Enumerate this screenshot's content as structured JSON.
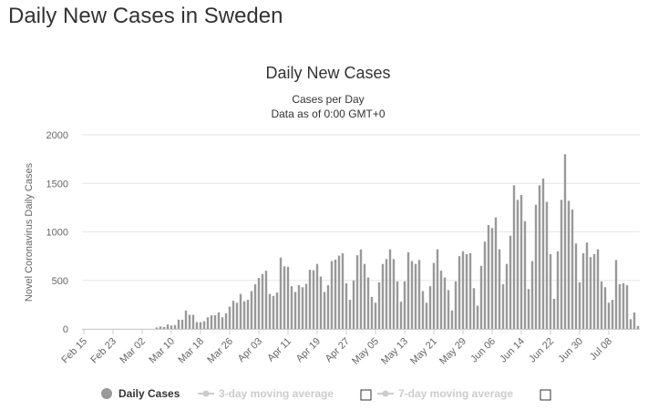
{
  "page": {
    "heading": "Daily New Cases in Sweden"
  },
  "chart_data": {
    "type": "bar",
    "title": "Daily New Cases",
    "subtitle_lines": [
      "Cases per Day",
      "Data as of 0:00 GMT+0"
    ],
    "ylabel": "Novel Coronavirus Daily Cases",
    "ylim": [
      0,
      2000
    ],
    "yticks": [
      0,
      500,
      1000,
      1500,
      2000
    ],
    "x_tick_labels": [
      "Feb 15",
      "Feb 23",
      "Mar 02",
      "Mar 10",
      "Mar 18",
      "Mar 26",
      "Apr 03",
      "Apr 11",
      "Apr 19",
      "Apr 27",
      "May 05",
      "May 13",
      "May 21",
      "May 29",
      "Jun 06",
      "Jun 14",
      "Jun 22",
      "Jun 30",
      "Jul 08"
    ],
    "x_start": "Feb 15",
    "grid": true,
    "legend_position": "bottom",
    "colors": {
      "bar": "#999999",
      "grid": "#e6e6e6",
      "text": "#333333",
      "muted": "#cccccc"
    },
    "series": [
      {
        "name": "Daily Cases",
        "values": [
          0,
          0,
          0,
          0,
          0,
          0,
          0,
          0,
          0,
          0,
          0,
          0,
          0,
          0,
          0,
          0,
          0,
          0,
          0,
          0,
          15,
          25,
          20,
          45,
          35,
          40,
          95,
          95,
          190,
          145,
          145,
          70,
          70,
          80,
          120,
          140,
          140,
          170,
          120,
          160,
          230,
          290,
          270,
          360,
          285,
          300,
          390,
          460,
          525,
          565,
          600,
          360,
          340,
          375,
          735,
          645,
          640,
          440,
          380,
          450,
          430,
          465,
          610,
          605,
          670,
          540,
          380,
          450,
          700,
          715,
          755,
          780,
          470,
          300,
          500,
          760,
          820,
          670,
          530,
          330,
          270,
          480,
          670,
          720,
          820,
          720,
          490,
          280,
          490,
          790,
          700,
          670,
          710,
          390,
          270,
          440,
          680,
          820,
          600,
          530,
          400,
          190,
          490,
          750,
          800,
          770,
          780,
          420,
          240,
          650,
          900,
          1070,
          1040,
          1150,
          820,
          460,
          670,
          960,
          1480,
          1330,
          1380,
          1110,
          410,
          700,
          1280,
          1480,
          1550,
          1310,
          770,
          310,
          800,
          1330,
          1800,
          1320,
          1230,
          880,
          480,
          780,
          890,
          740,
          770,
          820,
          490,
          430,
          270,
          300,
          710,
          460,
          470,
          450,
          100,
          170,
          30
        ]
      },
      {
        "name": "3-day moving average"
      },
      {
        "name": "7-day moving average"
      }
    ]
  }
}
